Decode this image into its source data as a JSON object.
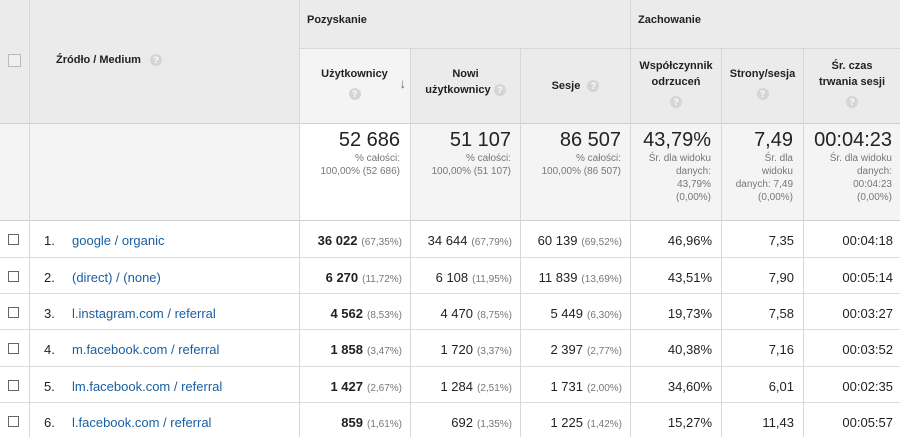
{
  "header": {
    "source_medium": "Źródło / Medium",
    "group_acquisition": "Pozyskanie",
    "group_behavior": "Zachowanie",
    "help_glyph": "?",
    "sort_glyph": "↓",
    "columns": {
      "users": "Użytkownicy",
      "new_users": [
        "Nowi",
        "użytkownicy"
      ],
      "sessions": "Sesje",
      "bounce": [
        "Współczynnik",
        "odrzuceń"
      ],
      "pages": "Strony/sesja",
      "duration": [
        "Śr. czas",
        "trwania sesji"
      ]
    }
  },
  "summary": {
    "users": {
      "value": "52 686",
      "l1": "% całości:",
      "l2": "100,00% (52 686)"
    },
    "new_users": {
      "value": "51 107",
      "l1": "% całości:",
      "l2": "100,00% (51 107)"
    },
    "sessions": {
      "value": "86 507",
      "l1": "% całości:",
      "l2": "100,00% (86 507)"
    },
    "bounce": {
      "value": "43,79%",
      "lines": [
        "Śr. dla widoku",
        "danych:",
        "43,79%",
        "(0,00%)"
      ]
    },
    "pages": {
      "value": "7,49",
      "lines": [
        "Śr. dla",
        "widoku",
        "danych: 7,49",
        "(0,00%)"
      ]
    },
    "duration": {
      "value": "00:04:23",
      "lines": [
        "Śr. dla widoku",
        "danych:",
        "00:04:23",
        "(0,00%)"
      ]
    }
  },
  "rows": [
    {
      "n": "1.",
      "src": "google / organic",
      "users": "36 022",
      "users_pct": "(67,35%)",
      "new": "34 644",
      "new_pct": "(67,79%)",
      "sess": "60 139",
      "sess_pct": "(69,52%)",
      "bounce": "46,96%",
      "pages": "7,35",
      "dur": "00:04:18"
    },
    {
      "n": "2.",
      "src": "(direct) / (none)",
      "users": "6 270",
      "users_pct": "(11,72%)",
      "new": "6 108",
      "new_pct": "(11,95%)",
      "sess": "11 839",
      "sess_pct": "(13,69%)",
      "bounce": "43,51%",
      "pages": "7,90",
      "dur": "00:05:14"
    },
    {
      "n": "3.",
      "src": "l.instagram.com / referral",
      "users": "4 562",
      "users_pct": "(8,53%)",
      "new": "4 470",
      "new_pct": "(8,75%)",
      "sess": "5 449",
      "sess_pct": "(6,30%)",
      "bounce": "19,73%",
      "pages": "7,58",
      "dur": "00:03:27"
    },
    {
      "n": "4.",
      "src": "m.facebook.com / referral",
      "users": "1 858",
      "users_pct": "(3,47%)",
      "new": "1 720",
      "new_pct": "(3,37%)",
      "sess": "2 397",
      "sess_pct": "(2,77%)",
      "bounce": "40,38%",
      "pages": "7,16",
      "dur": "00:03:52"
    },
    {
      "n": "5.",
      "src": "lm.facebook.com / referral",
      "users": "1 427",
      "users_pct": "(2,67%)",
      "new": "1 284",
      "new_pct": "(2,51%)",
      "sess": "1 731",
      "sess_pct": "(2,00%)",
      "bounce": "34,60%",
      "pages": "6,01",
      "dur": "00:02:35"
    },
    {
      "n": "6.",
      "src": "l.facebook.com / referral",
      "users": "859",
      "users_pct": "(1,61%)",
      "new": "692",
      "new_pct": "(1,35%)",
      "sess": "1 225",
      "sess_pct": "(1,42%)",
      "bounce": "15,27%",
      "pages": "11,43",
      "dur": "00:05:57"
    }
  ]
}
